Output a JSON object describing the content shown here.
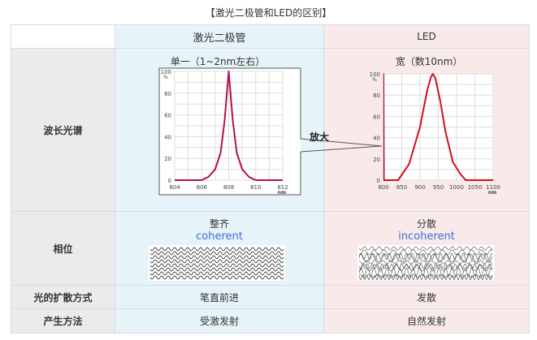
{
  "title": "【激光二极管和LED的区别】",
  "columns": [
    "",
    "激光二极管",
    "LED"
  ],
  "rows": {
    "spectrum": {
      "label": "波长光谱",
      "laser": "单一（1~2nm左右）",
      "led": "宽（数10nm）",
      "zoom_label": "放大"
    },
    "phase": {
      "label": "相位",
      "laser": "整齐",
      "laser_en": "coherent",
      "led": "分散",
      "led_en": "incoherent"
    },
    "spread": {
      "label": "光的扩散方式",
      "laser": "笔直前进",
      "led": "发散"
    },
    "method": {
      "label": "产生方法",
      "laser": "受激发射",
      "led": "自然发射"
    }
  },
  "colors": {
    "laser_curve": "#b0124f",
    "led_curve": "#d0101c",
    "link": "#3a6fd8"
  },
  "chart_data": [
    {
      "type": "line",
      "xlabel": "nm",
      "ylabel": "%",
      "xlim": [
        804,
        812
      ],
      "ylim": [
        0,
        100
      ],
      "xticks": [
        804,
        806,
        808,
        810,
        812
      ],
      "yticks": [
        0,
        20,
        40,
        60,
        80,
        100
      ],
      "grid": true,
      "series": [
        {
          "x": [
            804,
            806,
            806.5,
            807,
            807.4,
            807.7,
            808,
            808.3,
            808.6,
            809,
            809.5,
            810,
            812
          ],
          "y": [
            0,
            0,
            3,
            10,
            25,
            55,
            100,
            55,
            25,
            10,
            3,
            0,
            0
          ]
        }
      ]
    },
    {
      "type": "line",
      "xlabel": "nm",
      "ylabel": "%",
      "xlim": [
        800,
        1100
      ],
      "ylim": [
        0,
        100
      ],
      "xticks": [
        800,
        850,
        900,
        950,
        1000,
        1050,
        1100
      ],
      "yticks": [
        0,
        20,
        40,
        60,
        80,
        100
      ],
      "grid": true,
      "series": [
        {
          "x": [
            800,
            840,
            870,
            900,
            920,
            930,
            935,
            942,
            955,
            970,
            990,
            1010,
            1025,
            1100
          ],
          "y": [
            0,
            0,
            15,
            50,
            85,
            97,
            100,
            96,
            75,
            45,
            17,
            6,
            0,
            0
          ]
        },
        {
          "x": [
            801,
            801,
            802
          ],
          "y": [
            0,
            100,
            0
          ]
        }
      ]
    }
  ]
}
